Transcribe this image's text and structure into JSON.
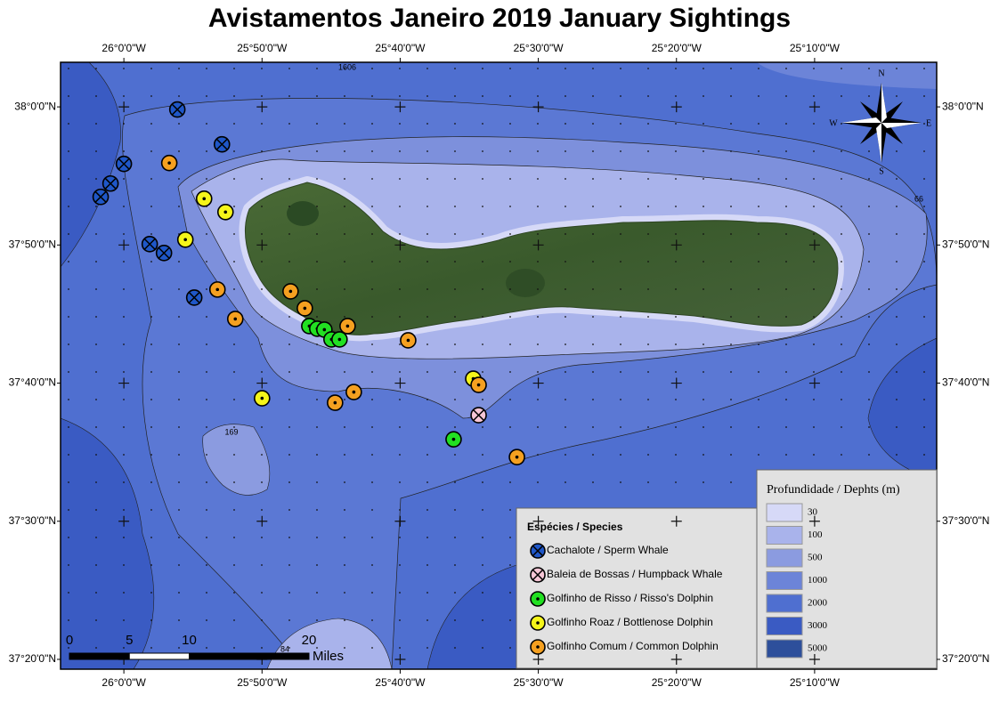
{
  "title": "Avistamentos Janeiro 2019 January Sightings",
  "map": {
    "xlim": [
      -26.0764,
      -25.0194
    ],
    "ylim": [
      37.3215,
      38.0538
    ],
    "xticks": [
      {
        "value": -26.0,
        "label": "26°0'0\"W"
      },
      {
        "value": -25.833333,
        "label": "25°50'0\"W"
      },
      {
        "value": -25.666667,
        "label": "25°40'0\"W"
      },
      {
        "value": -25.5,
        "label": "25°30'0\"W"
      },
      {
        "value": -25.333333,
        "label": "25°20'0\"W"
      },
      {
        "value": -25.166667,
        "label": "25°10'0\"W"
      }
    ],
    "yticks": [
      {
        "value": 38.0,
        "label": "38°0'0\"N"
      },
      {
        "value": 37.833333,
        "label": "37°50'0\"N"
      },
      {
        "value": 37.666667,
        "label": "37°40'0\"N"
      },
      {
        "value": 37.5,
        "label": "37°30'0\"N"
      },
      {
        "value": 37.333333,
        "label": "37°20'0\"N"
      }
    ],
    "depth_labels": [
      1606,
      169,
      84,
      66
    ],
    "compass": {
      "n": "N",
      "e": "E",
      "s": "S",
      "w": "W"
    },
    "scale_bar": {
      "ticks": [
        0,
        5,
        10,
        20
      ],
      "unit": "Miles"
    }
  },
  "species_legend": {
    "title": "Espécies / Species",
    "species": [
      {
        "name": "Cachalote / Sperm Whale",
        "color": "#1f57c8",
        "marker": "cross",
        "lon": [
          -25.9355,
          -25.8817,
          -26.0,
          -26.0161,
          -26.028,
          -25.9688,
          -25.9516,
          -25.9151
        ],
        "lat": [
          37.9968,
          37.9548,
          37.9312,
          37.9075,
          37.8914,
          37.8344,
          37.8237,
          37.7699
        ]
      },
      {
        "name": "Baleia de Bossas / Humpback Whale",
        "color": "#f6c6d6",
        "marker": "cross",
        "lon": [
          -25.572
        ],
        "lat": [
          37.628
        ]
      },
      {
        "name": "Golfinho de Risso / Risso's Dolphin",
        "color": "#22e022",
        "marker": "dot",
        "lon": [
          -25.7763,
          -25.7667,
          -25.7581,
          -25.7495,
          -25.7398,
          -25.6022
        ],
        "lat": [
          37.7355,
          37.7323,
          37.7312,
          37.7194,
          37.7194,
          37.5989
        ]
      },
      {
        "name": "Golfinho Roaz / Bottlenose Dolphin",
        "color": "#f5f51a",
        "marker": "dot",
        "lon": [
          -25.9032,
          -25.8774,
          -25.9258,
          -25.8333,
          -25.5785
        ],
        "lat": [
          37.8892,
          37.8731,
          37.8398,
          37.6484,
          37.672
        ]
      },
      {
        "name": "Golfinho Comum / Common Dolphin",
        "color": "#f5a020",
        "marker": "dot",
        "lon": [
          -25.9452,
          -25.8871,
          -25.8656,
          -25.7989,
          -25.7817,
          -25.7301,
          -25.657,
          -25.7226,
          -25.7452,
          -25.572,
          -25.5258
        ],
        "lat": [
          37.9323,
          37.7796,
          37.7441,
          37.7774,
          37.757,
          37.7355,
          37.7183,
          37.6559,
          37.643,
          37.6645,
          37.5774
        ]
      }
    ]
  },
  "depth_legend": {
    "title": "Profundidade / Dephts (m)",
    "items": [
      {
        "depth": 30,
        "color": "#d6d9f7"
      },
      {
        "depth": 100,
        "color": "#a9b3eb"
      },
      {
        "depth": 500,
        "color": "#8b9be0"
      },
      {
        "depth": 1000,
        "color": "#6c84d8"
      },
      {
        "depth": 2000,
        "color": "#4f6fd0"
      },
      {
        "depth": 3000,
        "color": "#3a5bc3"
      },
      {
        "depth": 5000,
        "color": "#2d4f9b"
      }
    ]
  }
}
